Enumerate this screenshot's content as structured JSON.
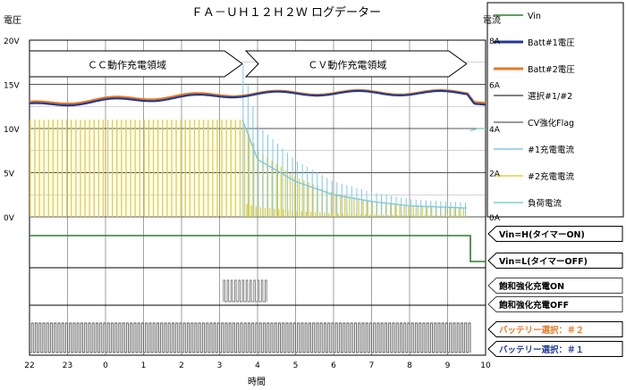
{
  "chart_data": {
    "type": "line",
    "title": "ＦＡ－ＵＨ１２Ｈ２Ｗ ログデーター",
    "ylabel_left": "電圧",
    "ylabel_right": "電流",
    "xlabel": "時間",
    "x_ticks": [
      "22",
      "23",
      "0",
      "1",
      "2",
      "3",
      "4",
      "5",
      "6",
      "7",
      "8",
      "9",
      "10"
    ],
    "y_left_ticks": [
      "20V",
      "15V",
      "10V",
      "5V",
      "0V"
    ],
    "y_right_ticks": [
      "8A",
      "6A",
      "4A",
      "2A",
      "0A"
    ],
    "ylim_left": [
      0,
      20
    ],
    "ylim_right": [
      0,
      8
    ],
    "grid": true,
    "legend_position": "right",
    "legend": [
      {
        "label": "Vin",
        "color": "#2e7d32"
      },
      {
        "label": "Batt#1電圧",
        "color": "#1f3a93"
      },
      {
        "label": "Batt#2電圧",
        "color": "#e87722"
      },
      {
        "label": "選択#1/#2",
        "color": "#555555"
      },
      {
        "label": "CV強化Flag",
        "color": "#777777"
      },
      {
        "label": "#1充電電流",
        "color": "#7ec8e3"
      },
      {
        "label": "#2充電電流",
        "color": "#e8d03a"
      },
      {
        "label": "負荷電流",
        "color": "#7ad3c8"
      }
    ],
    "phases": [
      {
        "label": "ＣＣ動作充電領域",
        "x_start": 22,
        "x_end": 27.6
      },
      {
        "label": "ＣＶ動作充電領域",
        "x_start": 27.6,
        "x_end": 33.5
      }
    ],
    "series": [
      {
        "name": "Batt#2電圧",
        "x": [
          22,
          24,
          26,
          28,
          30,
          32,
          33.5,
          33.7,
          34
        ],
        "values": [
          12.8,
          13.3,
          13.7,
          14.0,
          14.1,
          14.1,
          14.1,
          13.0,
          12.9
        ]
      },
      {
        "name": "Batt#1電圧",
        "x": [
          22,
          24,
          26,
          28,
          30,
          32,
          33.5,
          33.7,
          34
        ],
        "values": [
          12.6,
          13.1,
          13.5,
          13.9,
          14.0,
          14.0,
          14.0,
          12.8,
          12.7
        ]
      },
      {
        "name": "#2充電電流",
        "x": [
          22,
          27.6,
          28,
          29,
          30,
          31,
          32,
          33.5
        ],
        "values": [
          4.4,
          4.4,
          3.0,
          1.8,
          1.1,
          0.7,
          0.5,
          0.4
        ]
      },
      {
        "name": "#1充電電流",
        "x": [
          27.6,
          28,
          29,
          30,
          31,
          32,
          33.5
        ],
        "values": [
          4.4,
          2.6,
          1.6,
          1.0,
          0.7,
          0.5,
          0.4
        ]
      },
      {
        "name": "負荷電流",
        "x": [
          33.6,
          33.8,
          34
        ],
        "values": [
          3.9,
          4.0,
          4.0
        ]
      },
      {
        "name": "Vin",
        "x": [
          22,
          33.6,
          33.6,
          34
        ],
        "values": [
          1,
          1,
          0,
          0
        ]
      }
    ],
    "logic_labels": {
      "vin_high": "Vin=H(タイマーON)",
      "vin_low": "Vin=L(タイマーOFF)",
      "cv_on": "飽和強化充電ON",
      "cv_off": "飽和強化充電OFF",
      "batt2": "バッテリー選択：＃２",
      "batt1": "バッテリー選択：＃１"
    }
  }
}
